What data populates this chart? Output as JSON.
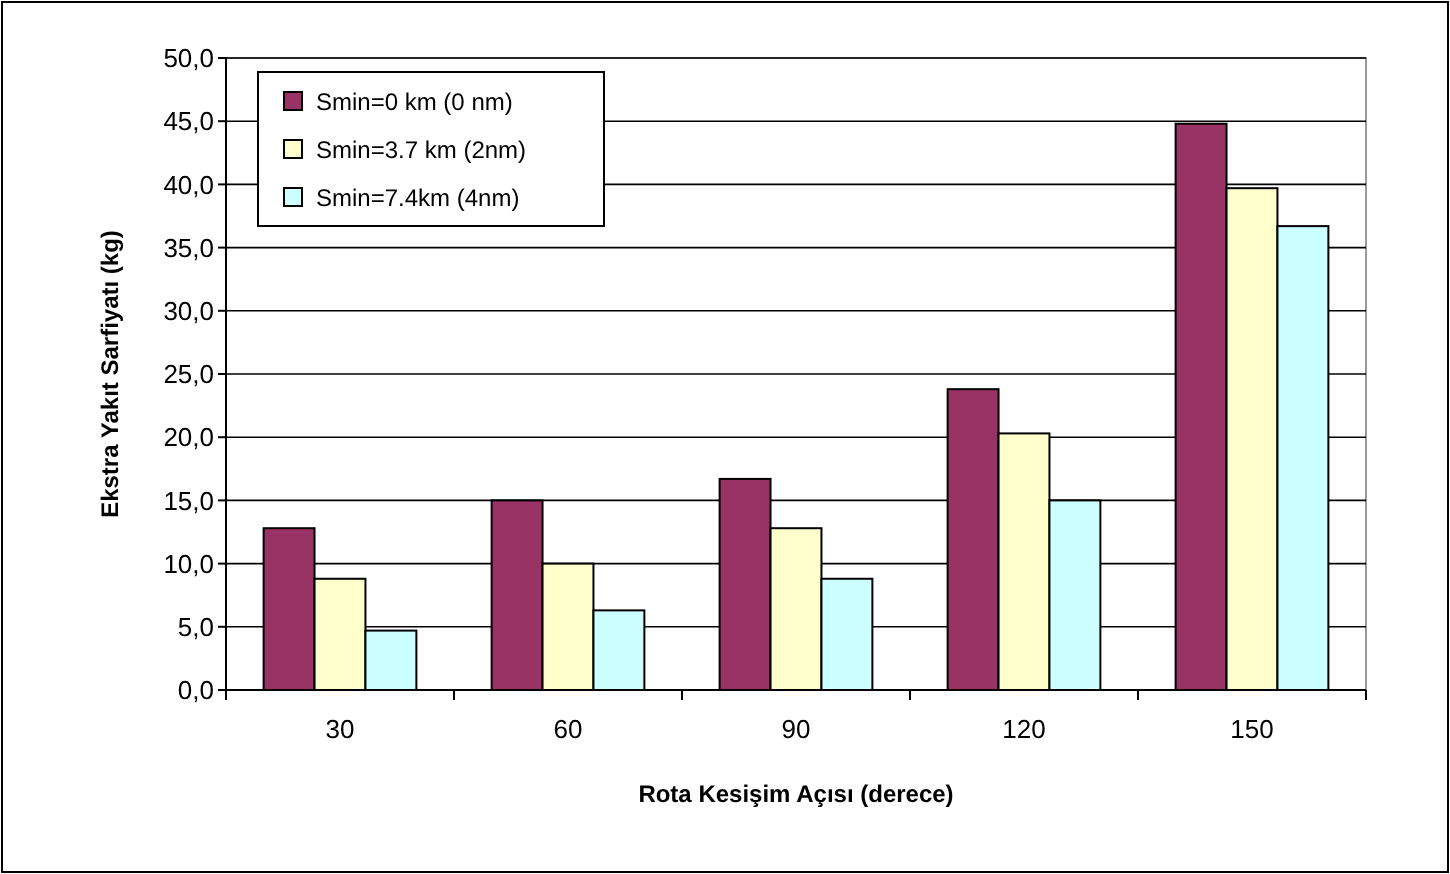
{
  "chart_data": {
    "type": "bar",
    "xlabel": "Rota Kesişim Açısı (derece)",
    "ylabel": "Ekstra Yakıt Sarfiyatı (kg)",
    "categories": [
      "30",
      "60",
      "90",
      "120",
      "150"
    ],
    "series": [
      {
        "name": "Smin=0 km (0 nm)",
        "color": "#993366",
        "values": [
          12.8,
          15.0,
          16.7,
          23.8,
          44.8
        ]
      },
      {
        "name": "Smin=3.7 km (2nm)",
        "color": "#ffffcc",
        "values": [
          8.8,
          10.0,
          12.8,
          20.3,
          39.7
        ]
      },
      {
        "name": "Smin=7.4km (4nm)",
        "color": "#ccffff",
        "values": [
          4.7,
          6.3,
          8.8,
          15.0,
          36.7
        ]
      }
    ],
    "ylim": [
      0,
      50
    ],
    "yticks": [
      {
        "value": 0,
        "label": "0,0"
      },
      {
        "value": 5,
        "label": "5,0"
      },
      {
        "value": 10,
        "label": "10,0"
      },
      {
        "value": 15,
        "label": "15,0"
      },
      {
        "value": 20,
        "label": "20,0"
      },
      {
        "value": 25,
        "label": "25,0"
      },
      {
        "value": 30,
        "label": "30,0"
      },
      {
        "value": 35,
        "label": "35,0"
      },
      {
        "value": 40,
        "label": "40,0"
      },
      {
        "value": 45,
        "label": "45,0"
      },
      {
        "value": 50,
        "label": "50,0"
      }
    ],
    "grid": "y",
    "legend": "top left"
  }
}
